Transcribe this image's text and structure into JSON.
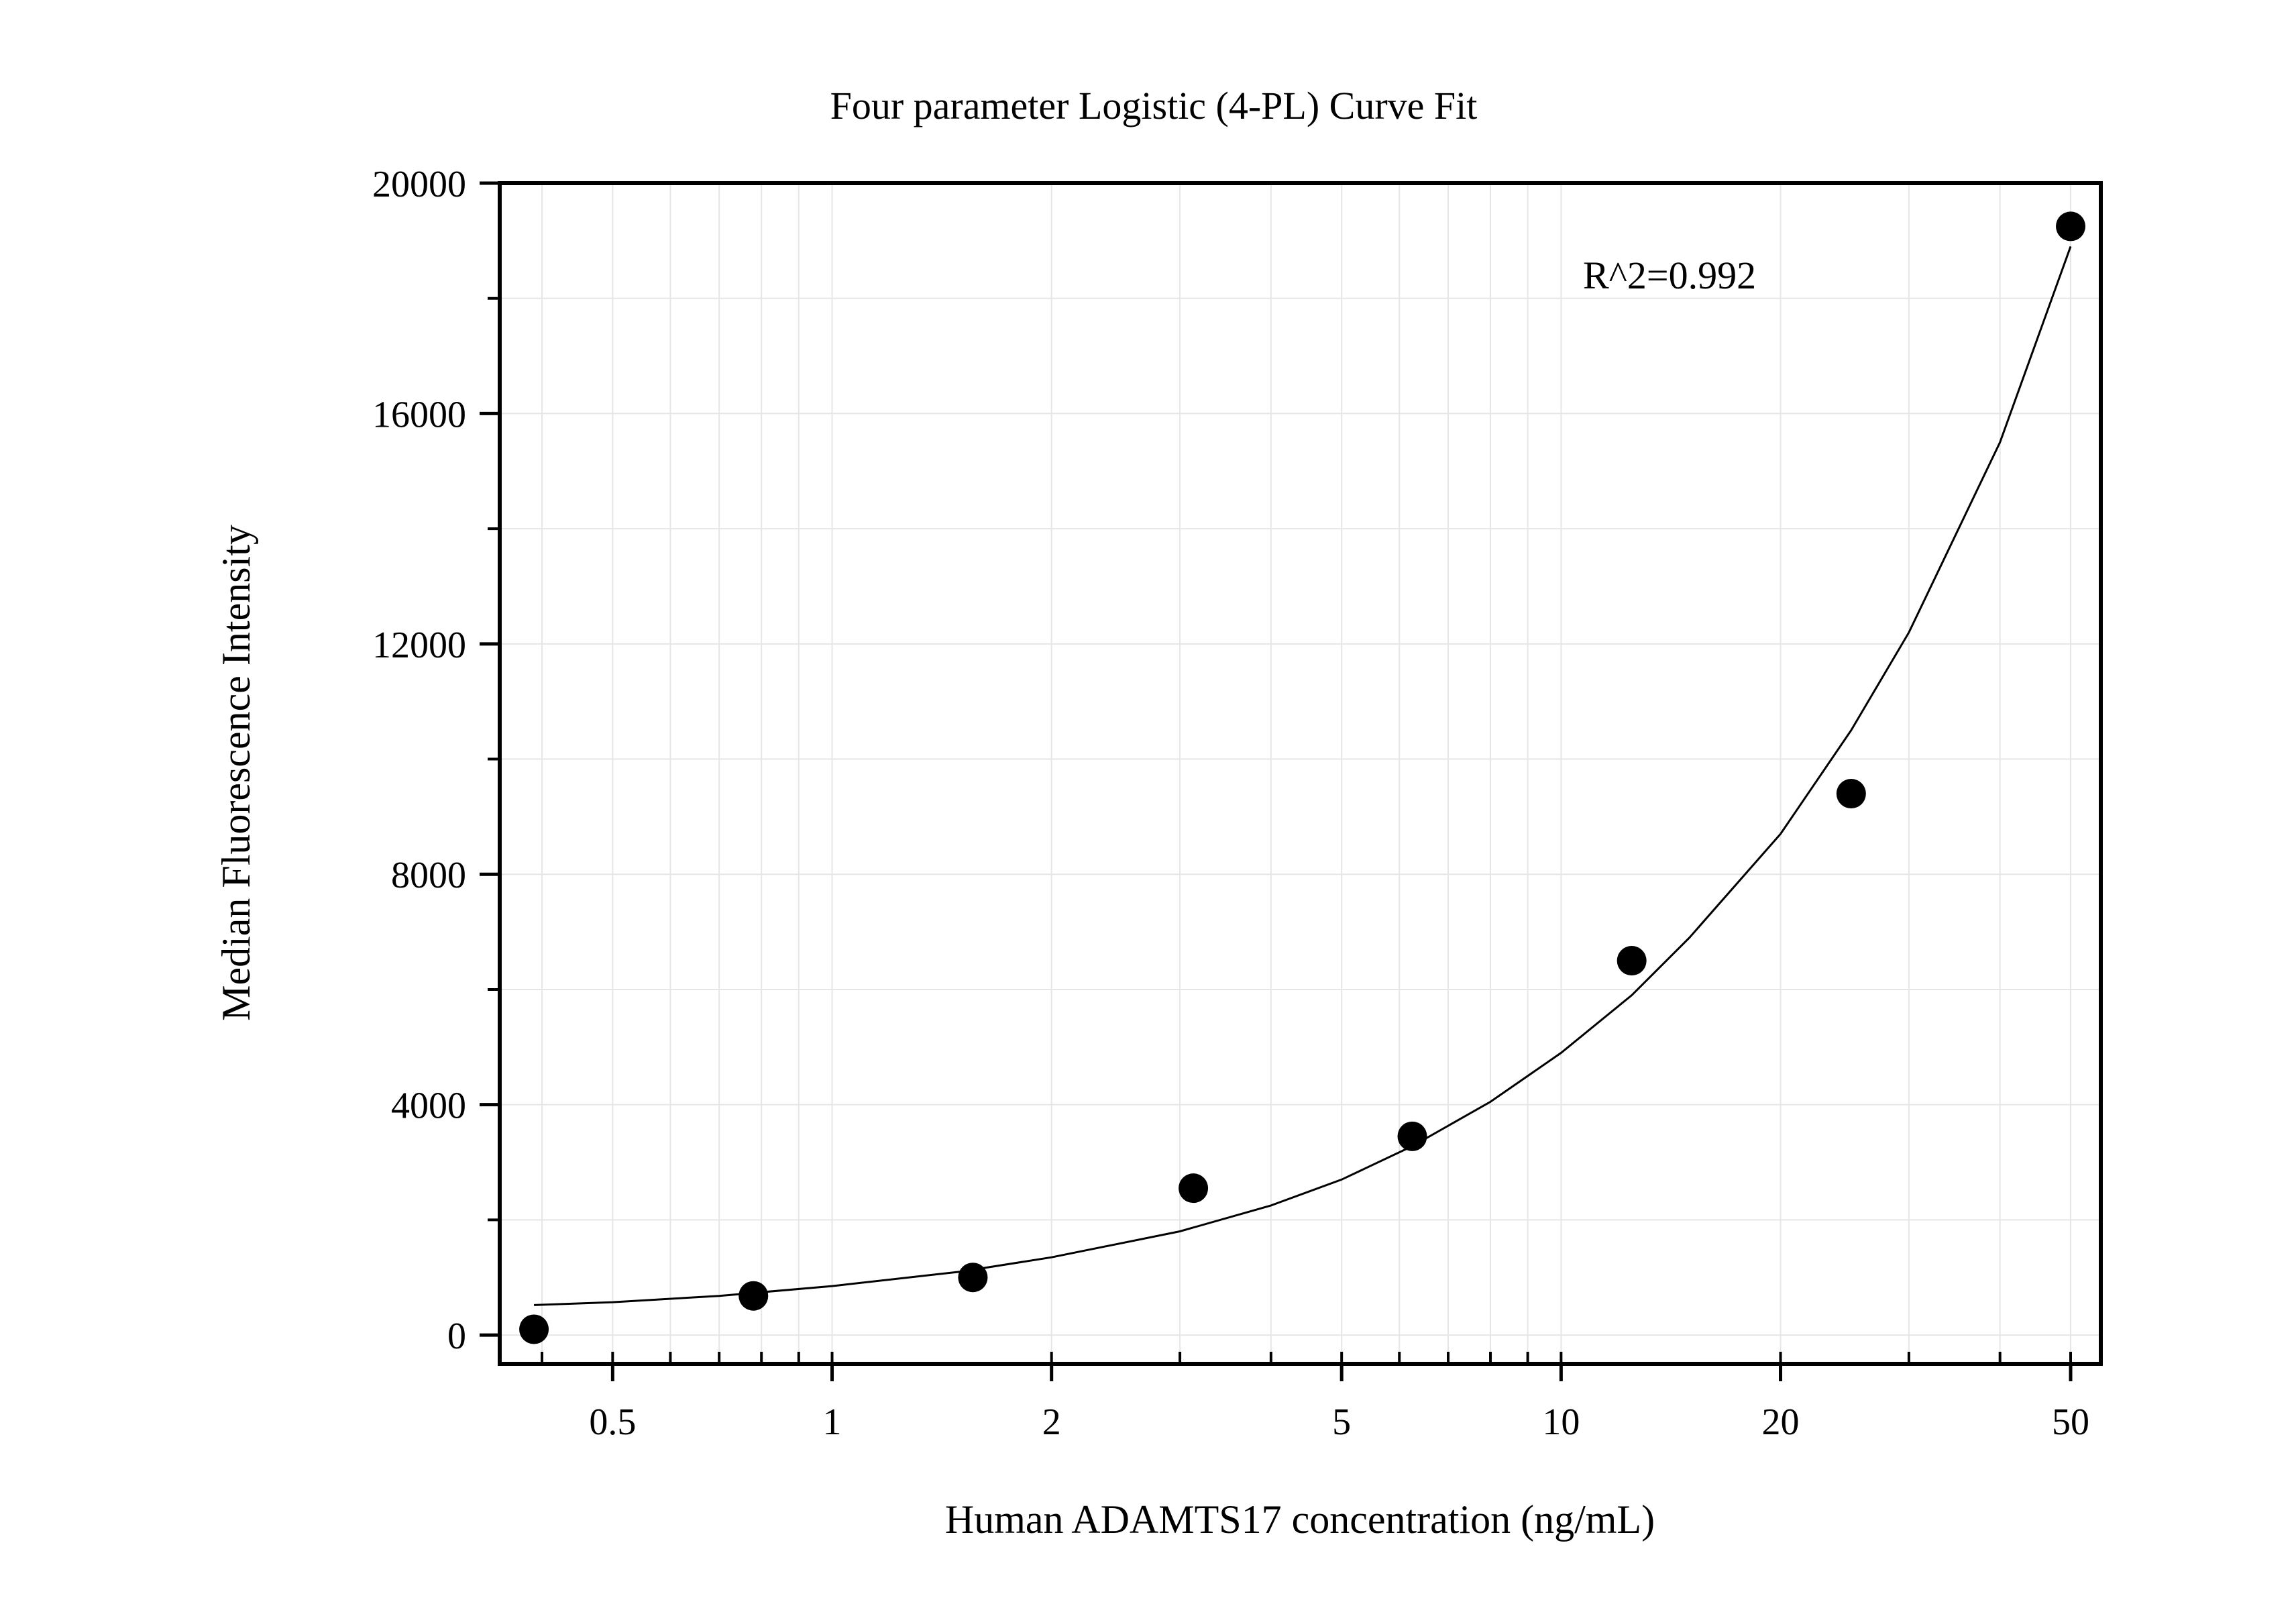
{
  "chart_data": {
    "type": "scatter",
    "title": "Four parameter Logistic (4-PL) Curve Fit",
    "xlabel": "Human ADAMTS17 concentration (ng/mL)",
    "ylabel": "Median Fluorescence Intensity",
    "x_scale": "log",
    "xlim": [
      0.35,
      55
    ],
    "ylim": [
      -500,
      20000
    ],
    "x_ticks": [
      0.5,
      1,
      2,
      5,
      10,
      20,
      50
    ],
    "x_tick_labels": [
      "0.5",
      "1",
      "2",
      "5",
      "10",
      "20",
      "50"
    ],
    "y_ticks": [
      0,
      4000,
      8000,
      12000,
      16000,
      20000
    ],
    "y_tick_labels": [
      "0",
      "4000",
      "8000",
      "12000",
      "16000",
      "20000"
    ],
    "grid": true,
    "annotation": "R^2=0.992",
    "series": [
      {
        "kind": "points",
        "x": [
          0.39,
          0.78,
          1.56,
          3.13,
          6.25,
          12.5,
          25,
          50
        ],
        "y": [
          100,
          680,
          1000,
          2550,
          3450,
          6500,
          9400,
          19250
        ]
      },
      {
        "kind": "fit-curve",
        "x": [
          0.39,
          0.5,
          0.7,
          1,
          1.5,
          2,
          3,
          4,
          5,
          6.25,
          8,
          10,
          12.5,
          15,
          20,
          25,
          30,
          40,
          50
        ],
        "y": [
          520,
          570,
          680,
          850,
          1100,
          1350,
          1800,
          2250,
          2700,
          3280,
          4050,
          4900,
          5900,
          6900,
          8700,
          10500,
          12200,
          15500,
          18900
        ]
      }
    ],
    "colors": {
      "points": "#000000",
      "curve": "#000000",
      "grid": "#e6e6e6",
      "axis": "#000000"
    }
  }
}
